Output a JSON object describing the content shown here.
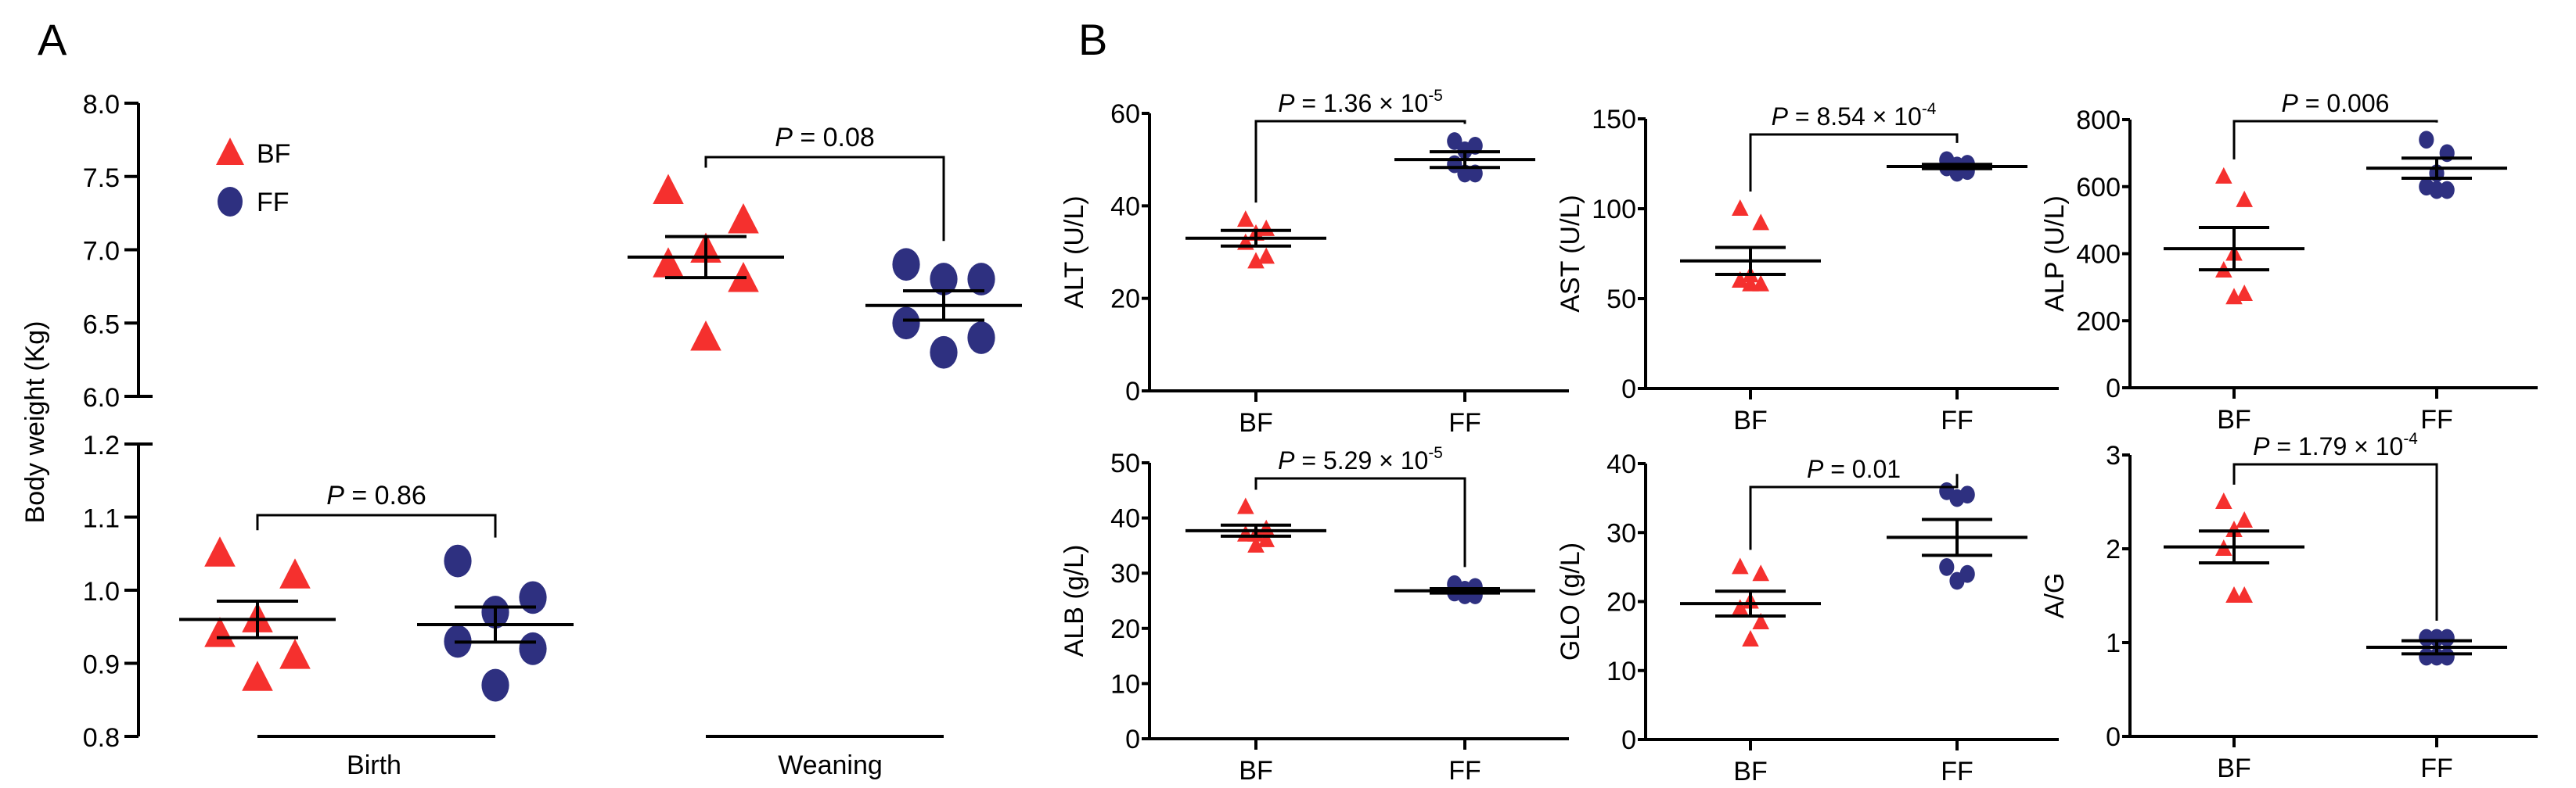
{
  "colors": {
    "BF": "#f5302e",
    "FF": "#2e3080"
  },
  "chart_data": [
    {
      "type": "scatter",
      "panel": "A",
      "ylabel": "Body weight (Kg)",
      "legend": [
        "BF",
        "FF"
      ],
      "legend_position": "top-left",
      "y_axis_broken": true,
      "ylim_upper": [
        6.0,
        8.0
      ],
      "yticks_upper": [
        "6.0",
        "6.5",
        "7.0",
        "7.5",
        "8.0"
      ],
      "ylim_lower": [
        0.8,
        1.2
      ],
      "yticks_lower": [
        "0.8",
        "0.9",
        "1.0",
        "1.1",
        "1.2"
      ],
      "categories": [
        "Birth",
        "Weaning"
      ],
      "groups": [
        {
          "category": "Birth",
          "p": "= 0.86",
          "BF": {
            "values": [
              1.05,
              1.02,
              0.96,
              0.94,
              0.91,
              0.88
            ],
            "mean": 0.96,
            "sem": 0.025
          },
          "FF": {
            "values": [
              1.04,
              0.99,
              0.97,
              0.93,
              0.92,
              0.87
            ],
            "mean": 0.953,
            "sem": 0.024
          }
        },
        {
          "category": "Weaning",
          "p": "= 0.08",
          "BF": {
            "values": [
              7.4,
              7.2,
              7.0,
              6.9,
              6.8,
              6.4
            ],
            "mean": 6.95,
            "sem": 0.14
          },
          "FF": {
            "values": [
              6.9,
              6.8,
              6.8,
              6.5,
              6.4,
              6.3
            ],
            "mean": 6.62,
            "sem": 0.1
          }
        }
      ]
    },
    {
      "type": "scatter",
      "panel": "B",
      "ylabel": "ALT (U/L)",
      "ylim": [
        0,
        60
      ],
      "yticks": [
        "0",
        "20",
        "40",
        "60"
      ],
      "categories": [
        "BF",
        "FF"
      ],
      "p": "= 1.36 × 10",
      "p_exp": "-5",
      "BF": {
        "values": [
          37,
          35,
          34,
          32,
          29,
          28
        ],
        "mean": 33,
        "sem": 1.7
      },
      "FF": {
        "values": [
          54,
          53,
          52,
          49,
          47,
          47
        ],
        "mean": 50,
        "sem": 1.7
      }
    },
    {
      "type": "scatter",
      "panel": "B",
      "ylabel": "AST (U/L)",
      "ylim": [
        0,
        150
      ],
      "yticks": [
        "0",
        "50",
        "100",
        "150"
      ],
      "categories": [
        "BF",
        "FF"
      ],
      "p": "= 8.54 × 10",
      "p_exp": "-4",
      "BF": {
        "values": [
          100,
          92,
          63,
          60,
          58,
          58
        ],
        "mean": 71,
        "sem": 7.5
      },
      "FF": {
        "values": [
          127,
          125,
          124,
          123,
          121,
          120
        ],
        "mean": 123.5,
        "sem": 1.2
      }
    },
    {
      "type": "scatter",
      "panel": "B",
      "ylabel": "ALP (U/L)",
      "ylim": [
        0,
        800
      ],
      "yticks": [
        "0",
        "200",
        "400",
        "600",
        "800"
      ],
      "categories": [
        "BF",
        "FF"
      ],
      "p": "= 0.006",
      "p_exp": "",
      "BF": {
        "values": [
          630,
          560,
          400,
          350,
          280,
          270
        ],
        "mean": 415,
        "sem": 63
      },
      "FF": {
        "values": [
          740,
          700,
          640,
          600,
          590,
          590
        ],
        "mean": 655,
        "sem": 30
      }
    },
    {
      "type": "scatter",
      "panel": "B",
      "ylabel": "ALB (g/L)",
      "ylim": [
        0,
        50
      ],
      "yticks": [
        "0",
        "10",
        "20",
        "30",
        "40",
        "50"
      ],
      "categories": [
        "BF",
        "FF"
      ],
      "p": "= 5.29 × 10",
      "p_exp": "-5",
      "BF": {
        "values": [
          42,
          38,
          37,
          37,
          36,
          35
        ],
        "mean": 37.7,
        "sem": 1.0
      },
      "FF": {
        "values": [
          28,
          27.5,
          27,
          26.5,
          26,
          26
        ],
        "mean": 26.8,
        "sem": 0.4
      }
    },
    {
      "type": "scatter",
      "panel": "B",
      "ylabel": "GLO (g/L)",
      "ylim": [
        0,
        40
      ],
      "yticks": [
        "0",
        "10",
        "20",
        "30",
        "40"
      ],
      "categories": [
        "BF",
        "FF"
      ],
      "p": "= 0.01",
      "p_exp": "",
      "BF": {
        "values": [
          25,
          24,
          20,
          19,
          17,
          14.5
        ],
        "mean": 19.7,
        "sem": 1.8
      },
      "FF": {
        "values": [
          36,
          35.5,
          35,
          25,
          24,
          23
        ],
        "mean": 29.3,
        "sem": 2.6
      }
    },
    {
      "type": "scatter",
      "panel": "B",
      "ylabel": "A/G",
      "ylim": [
        0,
        3
      ],
      "yticks": [
        "0",
        "1",
        "2",
        "3"
      ],
      "categories": [
        "BF",
        "FF"
      ],
      "p": "= 1.79 × 10",
      "p_exp": "-4",
      "BF": {
        "values": [
          2.5,
          2.3,
          2.2,
          2.0,
          1.5,
          1.5
        ],
        "mean": 2.02,
        "sem": 0.17
      },
      "FF": {
        "values": [
          1.05,
          1.05,
          1.05,
          0.85,
          0.85,
          0.85
        ],
        "mean": 0.95,
        "sem": 0.07
      }
    }
  ],
  "panel_labels": {
    "a": "A",
    "b": "B"
  },
  "p_symbol": "P"
}
